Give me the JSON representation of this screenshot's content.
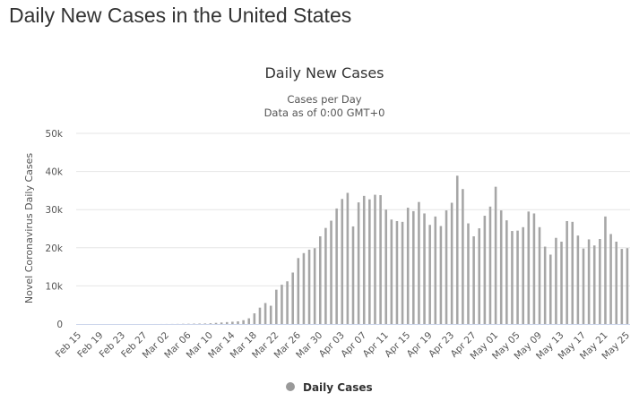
{
  "page": {
    "heading": "Daily New Cases in the United States"
  },
  "chart_data": {
    "type": "bar",
    "title": "Daily New Cases",
    "subtitle_lines": [
      "Cases per Day",
      "Data as of 0:00 GMT+0"
    ],
    "xlabel": "",
    "ylabel": "Novel Coronavirus Daily Cases",
    "ylim": [
      0,
      50000
    ],
    "yticks": [
      0,
      10000,
      20000,
      30000,
      40000,
      50000
    ],
    "ytick_labels": [
      "0",
      "10k",
      "20k",
      "30k",
      "40k",
      "50k"
    ],
    "grid": true,
    "legend_position": "bottom-center",
    "xtick_labels": [
      "Feb 15",
      "Feb 19",
      "Feb 23",
      "Feb 27",
      "Mar 02",
      "Mar 06",
      "Mar 10",
      "Mar 14",
      "Mar 18",
      "Mar 22",
      "Mar 26",
      "Mar 30",
      "Apr 03",
      "Apr 07",
      "Apr 11",
      "Apr 15",
      "Apr 19",
      "Apr 23",
      "Apr 27",
      "May 01",
      "May 05",
      "May 09",
      "May 13",
      "May 17",
      "May 21",
      "May 25"
    ],
    "xtick_every": 4,
    "categories": [
      "Feb 15",
      "Feb 16",
      "Feb 17",
      "Feb 18",
      "Feb 19",
      "Feb 20",
      "Feb 21",
      "Feb 22",
      "Feb 23",
      "Feb 24",
      "Feb 25",
      "Feb 26",
      "Feb 27",
      "Feb 28",
      "Feb 29",
      "Mar 01",
      "Mar 02",
      "Mar 03",
      "Mar 04",
      "Mar 05",
      "Mar 06",
      "Mar 07",
      "Mar 08",
      "Mar 09",
      "Mar 10",
      "Mar 11",
      "Mar 12",
      "Mar 13",
      "Mar 14",
      "Mar 15",
      "Mar 16",
      "Mar 17",
      "Mar 18",
      "Mar 19",
      "Mar 20",
      "Mar 21",
      "Mar 22",
      "Mar 23",
      "Mar 24",
      "Mar 25",
      "Mar 26",
      "Mar 27",
      "Mar 28",
      "Mar 29",
      "Mar 30",
      "Mar 31",
      "Apr 01",
      "Apr 02",
      "Apr 03",
      "Apr 04",
      "Apr 05",
      "Apr 06",
      "Apr 07",
      "Apr 08",
      "Apr 09",
      "Apr 10",
      "Apr 11",
      "Apr 12",
      "Apr 13",
      "Apr 14",
      "Apr 15",
      "Apr 16",
      "Apr 17",
      "Apr 18",
      "Apr 19",
      "Apr 20",
      "Apr 21",
      "Apr 22",
      "Apr 23",
      "Apr 24",
      "Apr 25",
      "Apr 26",
      "Apr 27",
      "Apr 28",
      "Apr 29",
      "Apr 30",
      "May 01",
      "May 02",
      "May 03",
      "May 04",
      "May 05",
      "May 06",
      "May 07",
      "May 08",
      "May 09",
      "May 10",
      "May 11",
      "May 12",
      "May 13",
      "May 14",
      "May 15",
      "May 16",
      "May 17",
      "May 18",
      "May 19",
      "May 20",
      "May 21",
      "May 22",
      "May 23",
      "May 24",
      "May 25"
    ],
    "series": [
      {
        "name": "Daily Cases",
        "color": "#a6a6a6",
        "values": [
          0,
          0,
          0,
          0,
          0,
          0,
          0,
          0,
          0,
          0,
          0,
          0,
          0,
          0,
          5,
          10,
          15,
          20,
          30,
          60,
          70,
          100,
          120,
          140,
          200,
          300,
          400,
          500,
          600,
          700,
          1000,
          1500,
          2800,
          4300,
          5500,
          4800,
          9000,
          10300,
          11200,
          13500,
          17300,
          18600,
          19500,
          19900,
          23000,
          25200,
          27100,
          30300,
          32800,
          34400,
          25600,
          31900,
          33600,
          32700,
          33900,
          33800,
          30000,
          27400,
          27000,
          26800,
          30500,
          29600,
          32000,
          29000,
          26000,
          28200,
          25700,
          29800,
          31800,
          38900,
          35400,
          26400,
          23000,
          25100,
          28400,
          30800,
          36000,
          29800,
          27200,
          24400,
          24500,
          25400,
          29500,
          29000,
          25400,
          20300,
          18200,
          22600,
          21600,
          27000,
          26800,
          23200,
          19800,
          22200,
          20600,
          22300,
          28200,
          23600,
          21600,
          19700,
          19900
        ]
      }
    ]
  },
  "colors": {
    "bar": "#a6a6a6",
    "grid": "#e6e6e6",
    "axis_line": "#ccd6eb",
    "legend_marker": "#999999"
  }
}
